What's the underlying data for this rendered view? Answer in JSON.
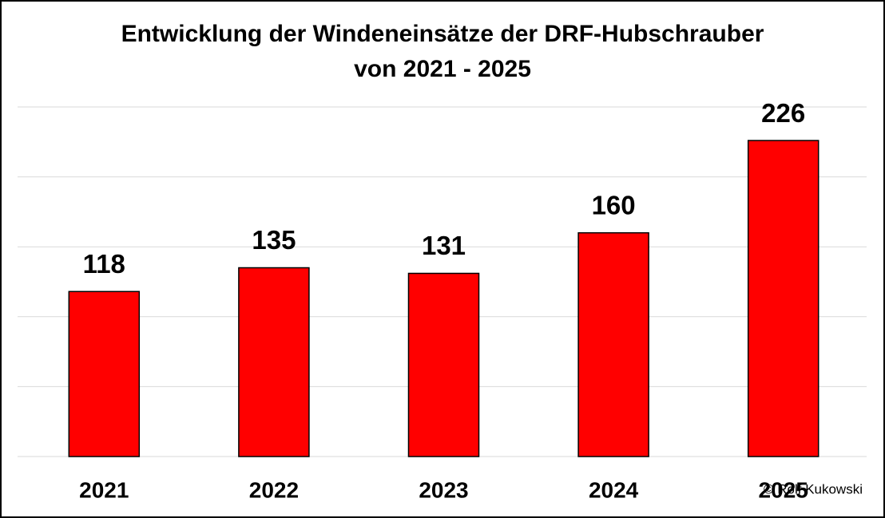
{
  "chart_data": {
    "type": "bar",
    "title": "Entwicklung der Windeneinsätze der DRF-Hubschrauber",
    "subtitle": "von 2021 - 2025",
    "categories": [
      "2021",
      "2022",
      "2023",
      "2024",
      "2025"
    ],
    "values": [
      118,
      135,
      131,
      160,
      226
    ],
    "color": "#ff0000",
    "ylim": [
      0,
      250
    ],
    "yticks": [
      0,
      50,
      100,
      150,
      200,
      250
    ],
    "grid": true,
    "annotation": "© Rolf Kukowski"
  }
}
